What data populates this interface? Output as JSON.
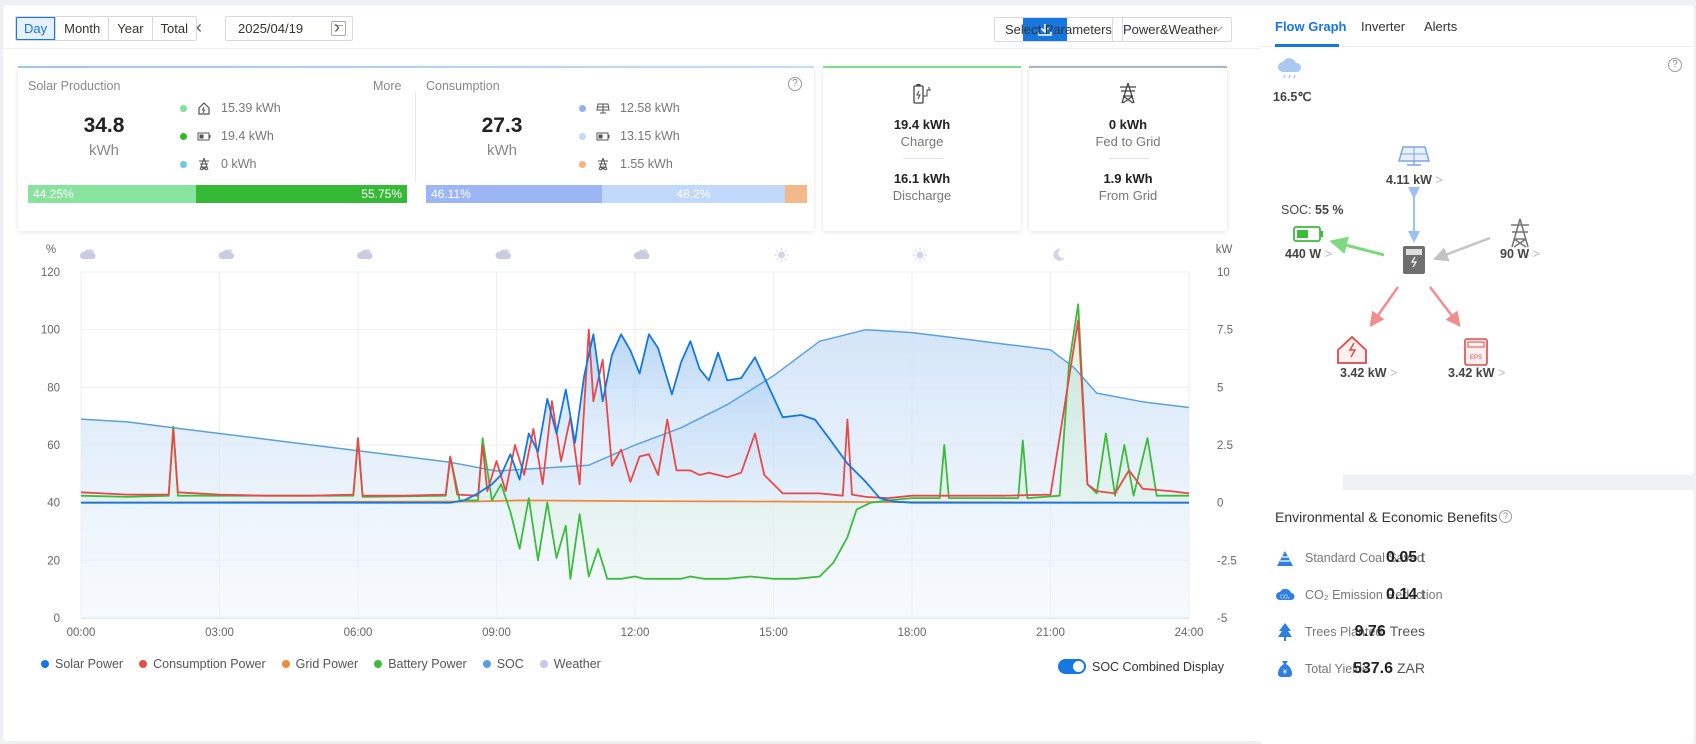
{
  "toolbar": {
    "periods": [
      "Day",
      "Month",
      "Year",
      "Total"
    ],
    "active_period": "Day",
    "date": "2025/04/19",
    "select_params": "Select Parameters",
    "view_select": "Power&Weather"
  },
  "solar": {
    "title": "Solar Production",
    "more": "More",
    "value": "34.8",
    "unit": "kWh",
    "rows": [
      "15.39 kWh",
      "19.4 kWh",
      "0 kWh"
    ],
    "bar_left": "44.25%",
    "bar_right": "55.75%",
    "bar_left_pct": 44.25
  },
  "consumption": {
    "title": "Consumption",
    "value": "27.3",
    "unit": "kWh",
    "rows": [
      "12.58 kWh",
      "13.15 kWh",
      "1.55 kWh"
    ],
    "bar_a": "46.11%",
    "bar_b": "48.2%",
    "pct_a": 46.11,
    "pct_b": 48.2,
    "pct_c": 5.69
  },
  "battery_card": {
    "charge_val": "19.4 kWh",
    "charge_lbl": "Charge",
    "discharge_val": "16.1 kWh",
    "discharge_lbl": "Discharge"
  },
  "grid_card": {
    "fed_val": "0 kWh",
    "fed_lbl": "Fed to Grid",
    "from_val": "1.9 kWh",
    "from_lbl": "From Grid"
  },
  "chart_data": {
    "type": "line",
    "left_unit": "%",
    "right_unit": "kW",
    "x_ticks": [
      "00:00",
      "03:00",
      "06:00",
      "09:00",
      "12:00",
      "15:00",
      "18:00",
      "21:00",
      "24:00"
    ],
    "y_left_ticks": [
      "120",
      "100",
      "80",
      "60",
      "40",
      "20",
      "0"
    ],
    "y_right_ticks": [
      "10",
      "7.5",
      "5",
      "2.5",
      "0",
      "-2.5",
      "-5"
    ],
    "ylim_left": [
      0,
      120
    ],
    "ylim_right": [
      -5,
      10
    ],
    "xlim_hours": [
      0,
      24
    ],
    "weather_icons": [
      "cloudy-night",
      "cloudy-night",
      "cloudy-night",
      "partly-cloudy",
      "partly-cloudy",
      "sunny",
      "sunny",
      "moon"
    ],
    "series": [
      {
        "name": "Solar Power",
        "axis": "right",
        "color": "#1677e0",
        "points": [
          [
            0,
            0
          ],
          [
            8,
            0
          ],
          [
            8.3,
            0.1
          ],
          [
            8.6,
            0.4
          ],
          [
            8.9,
            0.8
          ],
          [
            9.1,
            1.2
          ],
          [
            9.3,
            2.1
          ],
          [
            9.5,
            1.0
          ],
          [
            9.7,
            3.0
          ],
          [
            9.9,
            2.2
          ],
          [
            10.1,
            4.5
          ],
          [
            10.3,
            3.0
          ],
          [
            10.5,
            4.9
          ],
          [
            10.7,
            2.6
          ],
          [
            10.9,
            5.5
          ],
          [
            11.1,
            7.3
          ],
          [
            11.3,
            4.4
          ],
          [
            11.5,
            6.4
          ],
          [
            11.7,
            7.3
          ],
          [
            11.9,
            6.6
          ],
          [
            12.1,
            5.6
          ],
          [
            12.3,
            7.3
          ],
          [
            12.5,
            6.7
          ],
          [
            12.8,
            4.7
          ],
          [
            13.0,
            6.1
          ],
          [
            13.2,
            7.0
          ],
          [
            13.4,
            5.8
          ],
          [
            13.6,
            5.3
          ],
          [
            13.8,
            6.5
          ],
          [
            14.0,
            5.3
          ],
          [
            14.3,
            5.4
          ],
          [
            14.6,
            6.3
          ],
          [
            14.9,
            5.0
          ],
          [
            15.2,
            3.7
          ],
          [
            15.6,
            3.8
          ],
          [
            15.9,
            3.6
          ],
          [
            16.2,
            2.8
          ],
          [
            16.6,
            1.7
          ],
          [
            17.0,
            0.9
          ],
          [
            17.3,
            0.2
          ],
          [
            17.6,
            0.05
          ],
          [
            18.0,
            0
          ],
          [
            24,
            0
          ]
        ]
      },
      {
        "name": "Consumption Power",
        "axis": "right",
        "color": "#e84a4a",
        "points": [
          [
            0,
            0.45
          ],
          [
            1,
            0.35
          ],
          [
            1.9,
            0.35
          ],
          [
            2.0,
            3.2
          ],
          [
            2.1,
            0.45
          ],
          [
            3,
            0.35
          ],
          [
            4,
            0.3
          ],
          [
            5,
            0.3
          ],
          [
            5.9,
            0.35
          ],
          [
            6.0,
            2.8
          ],
          [
            6.1,
            0.3
          ],
          [
            7,
            0.3
          ],
          [
            7.9,
            0.35
          ],
          [
            8.0,
            2.0
          ],
          [
            8.15,
            0.35
          ],
          [
            8.6,
            0.3
          ],
          [
            8.7,
            2.5
          ],
          [
            8.8,
            0.5
          ],
          [
            9.0,
            1.8
          ],
          [
            9.2,
            0.5
          ],
          [
            9.4,
            2.5
          ],
          [
            9.6,
            1.2
          ],
          [
            9.8,
            3.2
          ],
          [
            10.0,
            0.8
          ],
          [
            10.2,
            4.4
          ],
          [
            10.4,
            1.8
          ],
          [
            10.6,
            3.7
          ],
          [
            10.8,
            0.8
          ],
          [
            11.0,
            7.5
          ],
          [
            11.1,
            4.4
          ],
          [
            11.3,
            6.2
          ],
          [
            11.5,
            1.6
          ],
          [
            11.7,
            2.3
          ],
          [
            11.9,
            0.9
          ],
          [
            12.1,
            2.0
          ],
          [
            12.3,
            2.1
          ],
          [
            12.5,
            1.2
          ],
          [
            12.7,
            3.6
          ],
          [
            12.9,
            1.4
          ],
          [
            13.2,
            1.4
          ],
          [
            13.4,
            1.2
          ],
          [
            13.6,
            1.3
          ],
          [
            14.0,
            1.1
          ],
          [
            14.3,
            1.3
          ],
          [
            14.6,
            3.0
          ],
          [
            14.8,
            1.2
          ],
          [
            15.2,
            0.4
          ],
          [
            16.0,
            0.4
          ],
          [
            16.5,
            0.3
          ],
          [
            16.6,
            3.6
          ],
          [
            16.7,
            0.35
          ],
          [
            17,
            0.25
          ],
          [
            17.5,
            0.2
          ],
          [
            18,
            0.3
          ],
          [
            19,
            0.3
          ],
          [
            20,
            0.3
          ],
          [
            21,
            0.35
          ],
          [
            21.4,
            5.4
          ],
          [
            21.6,
            7.9
          ],
          [
            21.8,
            0.8
          ],
          [
            22,
            0.5
          ],
          [
            22.4,
            0.4
          ],
          [
            22.7,
            1.4
          ],
          [
            23,
            0.6
          ],
          [
            23.6,
            0.5
          ],
          [
            24,
            0.4
          ]
        ]
      },
      {
        "name": "Grid Power",
        "axis": "right",
        "color": "#f08a3a",
        "points": [
          [
            0,
            0
          ],
          [
            8.5,
            0.05
          ],
          [
            9.5,
            0.1
          ],
          [
            12,
            0.07
          ],
          [
            15,
            0.05
          ],
          [
            18,
            0.02
          ],
          [
            24,
            0
          ]
        ]
      },
      {
        "name": "Battery Power",
        "axis": "right",
        "color": "#3dbb3d",
        "points": [
          [
            0,
            0.3
          ],
          [
            1,
            0.25
          ],
          [
            1.9,
            0.3
          ],
          [
            2.0,
            3.3
          ],
          [
            2.1,
            0.3
          ],
          [
            3,
            0.3
          ],
          [
            5.9,
            0.3
          ],
          [
            6.0,
            2.8
          ],
          [
            6.1,
            0.25
          ],
          [
            7.9,
            0.3
          ],
          [
            8.0,
            2.0
          ],
          [
            8.2,
            0.1
          ],
          [
            8.6,
            0.1
          ],
          [
            8.7,
            2.8
          ],
          [
            8.9,
            0.1
          ],
          [
            9.1,
            0.8
          ],
          [
            9.3,
            -0.4
          ],
          [
            9.5,
            -2.0
          ],
          [
            9.7,
            0.2
          ],
          [
            9.9,
            -2.5
          ],
          [
            10.1,
            0
          ],
          [
            10.3,
            -2.4
          ],
          [
            10.5,
            -1.0
          ],
          [
            10.6,
            -3.3
          ],
          [
            10.8,
            -0.5
          ],
          [
            11.0,
            -3.2
          ],
          [
            11.2,
            -2.0
          ],
          [
            11.4,
            -3.3
          ],
          [
            11.7,
            -3.3
          ],
          [
            12.0,
            -3.2
          ],
          [
            12.2,
            -3.3
          ],
          [
            12.5,
            -3.3
          ],
          [
            12.8,
            -3.3
          ],
          [
            13.0,
            -3.3
          ],
          [
            13.2,
            -3.2
          ],
          [
            13.5,
            -3.3
          ],
          [
            14.0,
            -3.3
          ],
          [
            14.5,
            -3.2
          ],
          [
            15.0,
            -3.3
          ],
          [
            15.5,
            -3.3
          ],
          [
            16.0,
            -3.2
          ],
          [
            16.3,
            -2.6
          ],
          [
            16.6,
            -1.5
          ],
          [
            16.8,
            -0.3
          ],
          [
            17.1,
            0
          ],
          [
            17.5,
            0.1
          ],
          [
            18.0,
            0.2
          ],
          [
            18.6,
            0.2
          ],
          [
            18.7,
            2.5
          ],
          [
            18.8,
            0.2
          ],
          [
            19.5,
            0.2
          ],
          [
            20.3,
            0.2
          ],
          [
            20.4,
            2.7
          ],
          [
            20.5,
            0.2
          ],
          [
            21.2,
            0.3
          ],
          [
            21.4,
            6.0
          ],
          [
            21.6,
            8.6
          ],
          [
            21.8,
            0.8
          ],
          [
            22.0,
            0.4
          ],
          [
            22.2,
            3.0
          ],
          [
            22.4,
            0.3
          ],
          [
            22.6,
            2.5
          ],
          [
            22.8,
            0.3
          ],
          [
            23.1,
            2.8
          ],
          [
            23.3,
            0.3
          ],
          [
            24,
            0.3
          ]
        ]
      },
      {
        "name": "SOC",
        "axis": "left",
        "color": "#5aa0e0",
        "points": [
          [
            0,
            69
          ],
          [
            1,
            68
          ],
          [
            2,
            66
          ],
          [
            3,
            64
          ],
          [
            4,
            62
          ],
          [
            5,
            60
          ],
          [
            6,
            58
          ],
          [
            7,
            56
          ],
          [
            8,
            54
          ],
          [
            9,
            51
          ],
          [
            10,
            52
          ],
          [
            11,
            53
          ],
          [
            12,
            60
          ],
          [
            13,
            66
          ],
          [
            14,
            74
          ],
          [
            15,
            84
          ],
          [
            16,
            96
          ],
          [
            17,
            100
          ],
          [
            18,
            99
          ],
          [
            19,
            97
          ],
          [
            20,
            95
          ],
          [
            21,
            93
          ],
          [
            21.5,
            87
          ],
          [
            22,
            78
          ],
          [
            23,
            75
          ],
          [
            24,
            73
          ]
        ]
      }
    ]
  },
  "legend": [
    "Solar Power",
    "Consumption Power",
    "Grid Power",
    "Battery Power",
    "SOC",
    "Weather"
  ],
  "legend_colors": [
    "#1677e0",
    "#e84a4a",
    "#f08a3a",
    "#3dbb3d",
    "#5aa0e0",
    "#c9c9dd"
  ],
  "soc_toggle_label": "SOC Combined Display",
  "side": {
    "tabs": [
      "Flow Graph",
      "Inverter",
      "Alerts"
    ],
    "temperature": "16.5℃",
    "solar_power": "4.11 kW",
    "soc_label": "SOC:",
    "soc_value": "55 %",
    "battery_power": "440 W",
    "grid_power": "90 W",
    "home_power": "3.42 kW",
    "eps_power": "3.42 kW",
    "chevron": ">"
  },
  "env": {
    "title": "Environmental & Economic Benefits",
    "rows": [
      {
        "name": "Standard Coal Saved",
        "value": "0.05",
        "unit": "t"
      },
      {
        "name": "CO₂ Emission Reduction",
        "value": "0.14",
        "unit": "t"
      },
      {
        "name": "Trees Planted",
        "value": "9.76",
        "unit": "Trees"
      },
      {
        "name": "Total Yields",
        "value": "537.6",
        "unit": "ZAR"
      }
    ]
  }
}
